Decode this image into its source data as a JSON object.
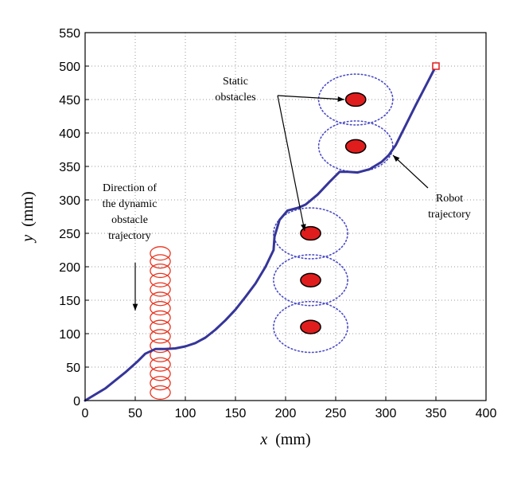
{
  "chart_data": {
    "type": "line",
    "title": "",
    "xlabel_var": "x",
    "xlabel_unit": "(mm)",
    "ylabel_var": "y",
    "ylabel_unit": "(mm)",
    "xlim": [
      0,
      400
    ],
    "ylim": [
      0,
      550
    ],
    "xticks": [
      0,
      50,
      100,
      150,
      200,
      250,
      300,
      350,
      400
    ],
    "yticks": [
      0,
      50,
      100,
      150,
      200,
      250,
      300,
      350,
      400,
      450,
      500,
      550
    ],
    "grid": true,
    "robot_trajectory": {
      "color": "#35359a",
      "points": [
        [
          0,
          0
        ],
        [
          20,
          18
        ],
        [
          40,
          42
        ],
        [
          52,
          58
        ],
        [
          60,
          70
        ],
        [
          70,
          77
        ],
        [
          80,
          77
        ],
        [
          90,
          78
        ],
        [
          100,
          81
        ],
        [
          110,
          86
        ],
        [
          120,
          94
        ],
        [
          130,
          106
        ],
        [
          140,
          120
        ],
        [
          150,
          136
        ],
        [
          160,
          155
        ],
        [
          170,
          175
        ],
        [
          180,
          200
        ],
        [
          188,
          225
        ],
        [
          189,
          245
        ],
        [
          194,
          270
        ],
        [
          202,
          284
        ],
        [
          212,
          288
        ],
        [
          220,
          293
        ],
        [
          232,
          308
        ],
        [
          244,
          327
        ],
        [
          254,
          342
        ],
        [
          262,
          342
        ],
        [
          272,
          341
        ],
        [
          284,
          346
        ],
        [
          296,
          357
        ],
        [
          303,
          367
        ],
        [
          310,
          382
        ],
        [
          320,
          412
        ],
        [
          330,
          442
        ],
        [
          340,
          471
        ],
        [
          350,
          500
        ]
      ]
    },
    "dynamic_obstacle": {
      "color": "#e8341f",
      "x": 75,
      "y_centers": [
        12,
        26,
        40,
        54,
        68,
        82,
        96,
        110,
        124,
        138,
        152,
        166,
        180,
        194,
        208,
        220
      ],
      "rx": 10,
      "ry": 10
    },
    "static_obstacles": {
      "color": "#e01d1d",
      "centers": [
        [
          270,
          450
        ],
        [
          270,
          380
        ],
        [
          225,
          250
        ],
        [
          225,
          180
        ],
        [
          225,
          110
        ]
      ],
      "rx": 10,
      "ry": 10
    },
    "safety_regions": {
      "color": "#4a4ac8",
      "centers": [
        [
          270,
          450
        ],
        [
          270,
          380
        ],
        [
          225,
          250
        ],
        [
          225,
          180
        ],
        [
          225,
          110
        ]
      ],
      "rx": 37,
      "ry": 38
    },
    "goal": {
      "x": 350,
      "y": 500,
      "color": "#e01d1d"
    },
    "annotations": {
      "static": [
        "Static",
        "obstacles"
      ],
      "dynamic": [
        "Direction of",
        "the dynamic",
        "obstacle",
        "trajectory"
      ],
      "robot": [
        "Robot",
        "trajectory"
      ]
    }
  }
}
